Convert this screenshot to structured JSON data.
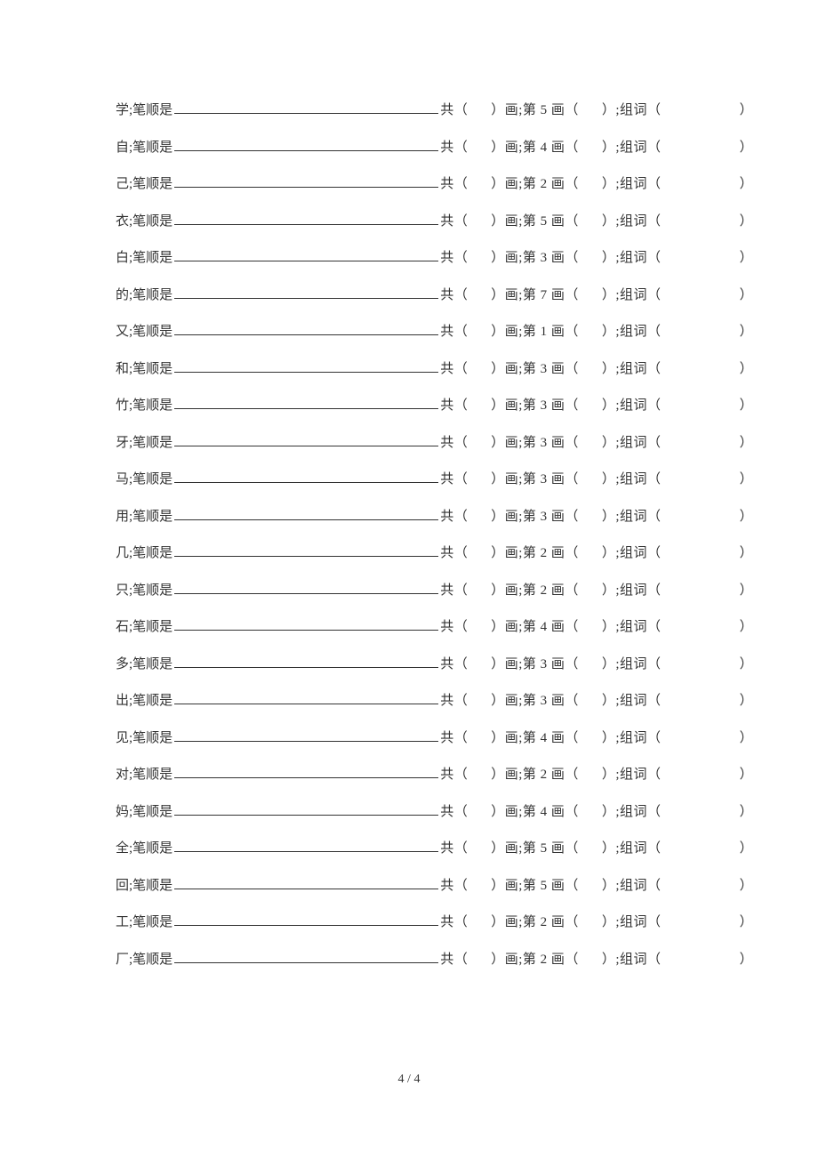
{
  "worksheet": {
    "label_stroke_order": ";笔顺是",
    "label_total": "共（",
    "label_total_suffix": "）画;第 ",
    "label_stroke_suffix": " 画（",
    "label_word": "）;组词（",
    "label_end": "）",
    "rows": [
      {
        "char": "学",
        "stroke_num": "5"
      },
      {
        "char": "自",
        "stroke_num": "4"
      },
      {
        "char": "己",
        "stroke_num": "2"
      },
      {
        "char": "衣",
        "stroke_num": "5"
      },
      {
        "char": "白",
        "stroke_num": "3"
      },
      {
        "char": "的",
        "stroke_num": "7"
      },
      {
        "char": "又",
        "stroke_num": "1"
      },
      {
        "char": "和",
        "stroke_num": "3"
      },
      {
        "char": "竹",
        "stroke_num": "3"
      },
      {
        "char": "牙",
        "stroke_num": "3"
      },
      {
        "char": "马",
        "stroke_num": "3"
      },
      {
        "char": "用",
        "stroke_num": "3"
      },
      {
        "char": "几",
        "stroke_num": "2"
      },
      {
        "char": "只",
        "stroke_num": "2"
      },
      {
        "char": "石",
        "stroke_num": "4"
      },
      {
        "char": "多",
        "stroke_num": "3"
      },
      {
        "char": "出",
        "stroke_num": "3"
      },
      {
        "char": "见",
        "stroke_num": "4"
      },
      {
        "char": "对",
        "stroke_num": "2"
      },
      {
        "char": "妈",
        "stroke_num": "4"
      },
      {
        "char": "全",
        "stroke_num": "5"
      },
      {
        "char": "回",
        "stroke_num": "5"
      },
      {
        "char": "工",
        "stroke_num": "2"
      },
      {
        "char": "厂",
        "stroke_num": "2"
      }
    ]
  },
  "page": {
    "current": "4",
    "separator": " / ",
    "total": "4"
  }
}
